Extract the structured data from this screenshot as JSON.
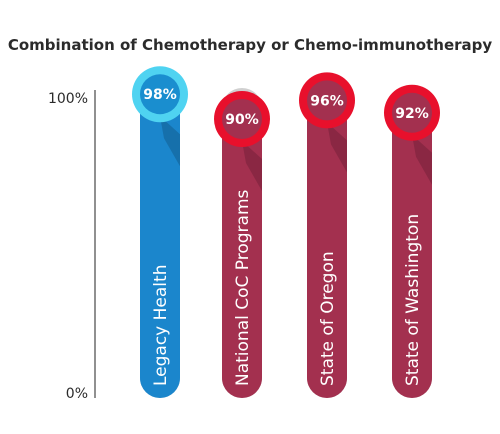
{
  "chart_data": {
    "type": "bar",
    "title": "Combination of Chemotherapy or Chemo-immunotherapy",
    "categories": [
      "Legacy Health",
      "National CoC Programs",
      "State of Oregon",
      "State of Washington"
    ],
    "values": [
      98,
      90,
      96,
      92
    ],
    "value_labels": [
      "98%",
      "90%",
      "96%",
      "92%"
    ],
    "ylim": [
      0,
      100
    ],
    "y_tick_labels": [
      "100%",
      "0%"
    ],
    "grid": false,
    "legend": "none",
    "colors": {
      "highlight_bar": "#1b86cc",
      "highlight_shadow": "#1670ab",
      "highlight_ring": "#4fd3f1",
      "highlight_disc": "#1a8ecf",
      "bar": "#a3304f",
      "bar_shadow": "#8a2743",
      "ring": "#e8102c",
      "disc": "#a3304f",
      "track": "#d0d0d0"
    }
  }
}
